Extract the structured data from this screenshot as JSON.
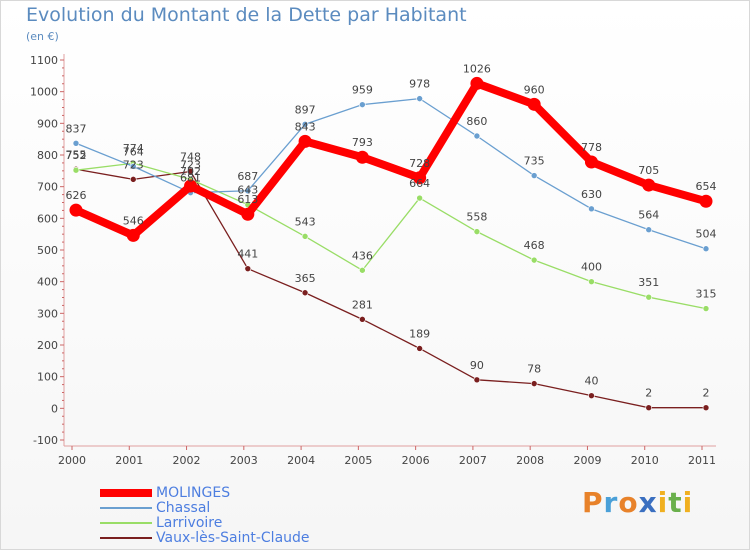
{
  "title": "Evolution du Montant de la Dette par Habitant",
  "subtitle": "(en €)",
  "chart_data": {
    "type": "line",
    "title": "Evolution du Montant de la Dette par Habitant",
    "subtitle": "(en €)",
    "xlabel": "",
    "ylabel": "",
    "x": [
      "2000",
      "2001",
      "2002",
      "2003",
      "2004",
      "2005",
      "2006",
      "2007",
      "2008",
      "2009",
      "2010",
      "2011"
    ],
    "ylim": [
      -100,
      1100
    ],
    "yticks": [
      -100,
      0,
      100,
      200,
      300,
      400,
      500,
      600,
      700,
      800,
      900,
      1000,
      1100
    ],
    "grid": false,
    "legend_position": "bottom-left",
    "series": [
      {
        "name": "MOLINGES",
        "color": "#ff0000",
        "values": [
          626,
          546,
          702,
          613,
          843,
          793,
          728,
          1026,
          960,
          778,
          705,
          654
        ]
      },
      {
        "name": "Chassal",
        "color": "#6a9fd0",
        "values": [
          837,
          764,
          681,
          687,
          897,
          959,
          978,
          860,
          735,
          630,
          564,
          504
        ]
      },
      {
        "name": "Larrivoire",
        "color": "#99dd66",
        "values": [
          752,
          774,
          723,
          643,
          543,
          436,
          664,
          558,
          468,
          400,
          351,
          315
        ]
      },
      {
        "name": "Vaux-lès-Saint-Claude",
        "color": "#7a1f1f",
        "values": [
          755,
          723,
          748,
          441,
          365,
          281,
          189,
          90,
          78,
          40,
          2,
          2
        ]
      }
    ]
  },
  "logo": {
    "text": "Proxiti",
    "letters": [
      "P",
      "r",
      "o",
      "x",
      "i",
      "t",
      "i"
    ],
    "colors": [
      "#e8822a",
      "#4aa0d8",
      "#e8822a",
      "#3a6fc0",
      "#f0b020",
      "#6ab04c",
      "#f0b020"
    ]
  }
}
